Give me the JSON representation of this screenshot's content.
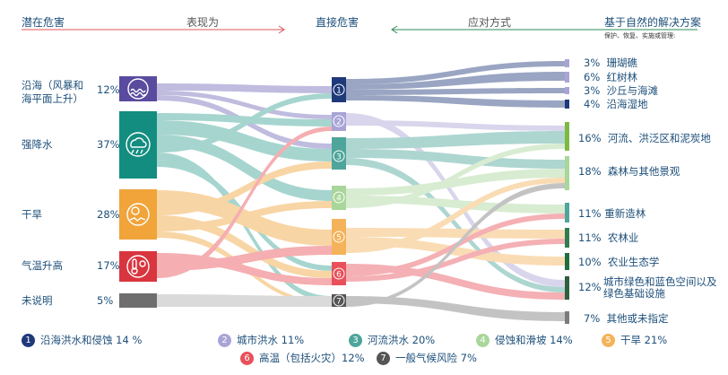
{
  "headers": {
    "hazards": "潜在危害",
    "manifest": "表现为",
    "direct": "直接危害",
    "response": "应对方式",
    "nbs": "基于自然的解决方案",
    "nbs_sub": "保护、恢复、实施或管理:"
  },
  "colors": {
    "navy": "#1f3a7a",
    "lavender": "#a9a4d6",
    "teal": "#4ea59b",
    "lightgreen": "#a9d69a",
    "orange": "#f4b35a",
    "red": "#e8515b",
    "gray": "#7b7b7b",
    "green": "#7cba3d",
    "darkgreen": "#2e7d4f",
    "darkteal": "#138d80"
  },
  "hazards": [
    {
      "label": "沿海（风暴和海平面上升）",
      "pct": "12%",
      "icon": "coastal-wave-icon",
      "color": "#5a4b9e"
    },
    {
      "label": "强降水",
      "pct": "37%",
      "icon": "heavy-rain-icon",
      "color": "#138d80"
    },
    {
      "label": "干旱",
      "pct": "28%",
      "icon": "drought-icon",
      "color": "#f0a43a"
    },
    {
      "label": "气温升高",
      "pct": "17%",
      "icon": "thermometer-sun-icon",
      "color": "#d9353f"
    },
    {
      "label": "未说明",
      "pct": "5%",
      "icon": "",
      "color": "#6e6e6e"
    }
  ],
  "direct": [
    "1",
    "2",
    "3",
    "4",
    "5",
    "6",
    "7"
  ],
  "solutions": [
    {
      "pct": "3%",
      "label": "珊瑚礁"
    },
    {
      "pct": "6%",
      "label": "红树林"
    },
    {
      "pct": "3%",
      "label": "沙丘与海滩"
    },
    {
      "pct": "4%",
      "label": "沿海湿地"
    },
    {
      "pct": "16%",
      "label": "河流、洪泛区和泥炭地"
    },
    {
      "pct": "18%",
      "label": "森林与其他景观"
    },
    {
      "pct": "11%",
      "label": "重新造林"
    },
    {
      "pct": "11%",
      "label": "农林业"
    },
    {
      "pct": "10%",
      "label": "农业生态学"
    },
    {
      "pct": "12%",
      "label": "城市绿色和蓝色空间以及绿色基础设施"
    },
    {
      "pct": "7%",
      "label": "其他或未指定"
    }
  ],
  "legend": [
    {
      "num": "1",
      "label": "沿海洪水和侵蚀 14 %",
      "color": "#1f3a7a"
    },
    {
      "num": "2",
      "label": "城市洪水 11%",
      "color": "#a9a4d6"
    },
    {
      "num": "3",
      "label": "河流洪水 20%",
      "color": "#4ea59b"
    },
    {
      "num": "4",
      "label": "侵蚀和滑坡 14%",
      "color": "#a9d69a"
    },
    {
      "num": "5",
      "label": "干旱 21%",
      "color": "#f4b35a"
    },
    {
      "num": "6",
      "label": "高温（包括火灾）12%",
      "color": "#e8515b"
    },
    {
      "num": "7",
      "label": "一般气候风险 7%",
      "color": "#555555"
    }
  ]
}
